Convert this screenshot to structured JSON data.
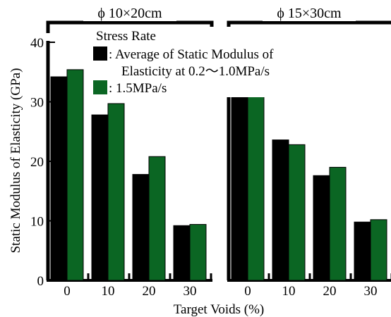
{
  "chart_data": {
    "type": "bar",
    "ylabel": "Static Modulus of Elasticity (GPa)",
    "xlabel": "Target Voids (%)",
    "ylim": [
      0,
      40
    ],
    "yticks": [
      0,
      10,
      20,
      30,
      40
    ],
    "categories": [
      "0",
      "10",
      "20",
      "30"
    ],
    "legend": {
      "title": "Stress Rate",
      "placement": "top-left",
      "entries": [
        {
          "line1": ": Average of  Static Modulus of",
          "line2": "Elasticity at 0.2〜1.0MPa/s"
        },
        {
          "line1": ": 1.5MPa/s",
          "line2": ""
        }
      ]
    },
    "colors": {
      "avg": "#000000",
      "rate": "#0b6623"
    },
    "panels": [
      {
        "label": "ϕ 10×20cm",
        "series": [
          {
            "values": [
              34.2,
              27.8,
              17.8,
              9.2
            ]
          },
          {
            "values": [
              35.4,
              29.7,
              20.8,
              9.4
            ]
          }
        ]
      },
      {
        "label": "ϕ 15×30cm",
        "series": [
          {
            "values": [
              33.3,
              23.6,
              17.6,
              9.8
            ]
          },
          {
            "values": [
              33.0,
              22.8,
              19.0,
              10.2
            ]
          }
        ]
      }
    ]
  }
}
